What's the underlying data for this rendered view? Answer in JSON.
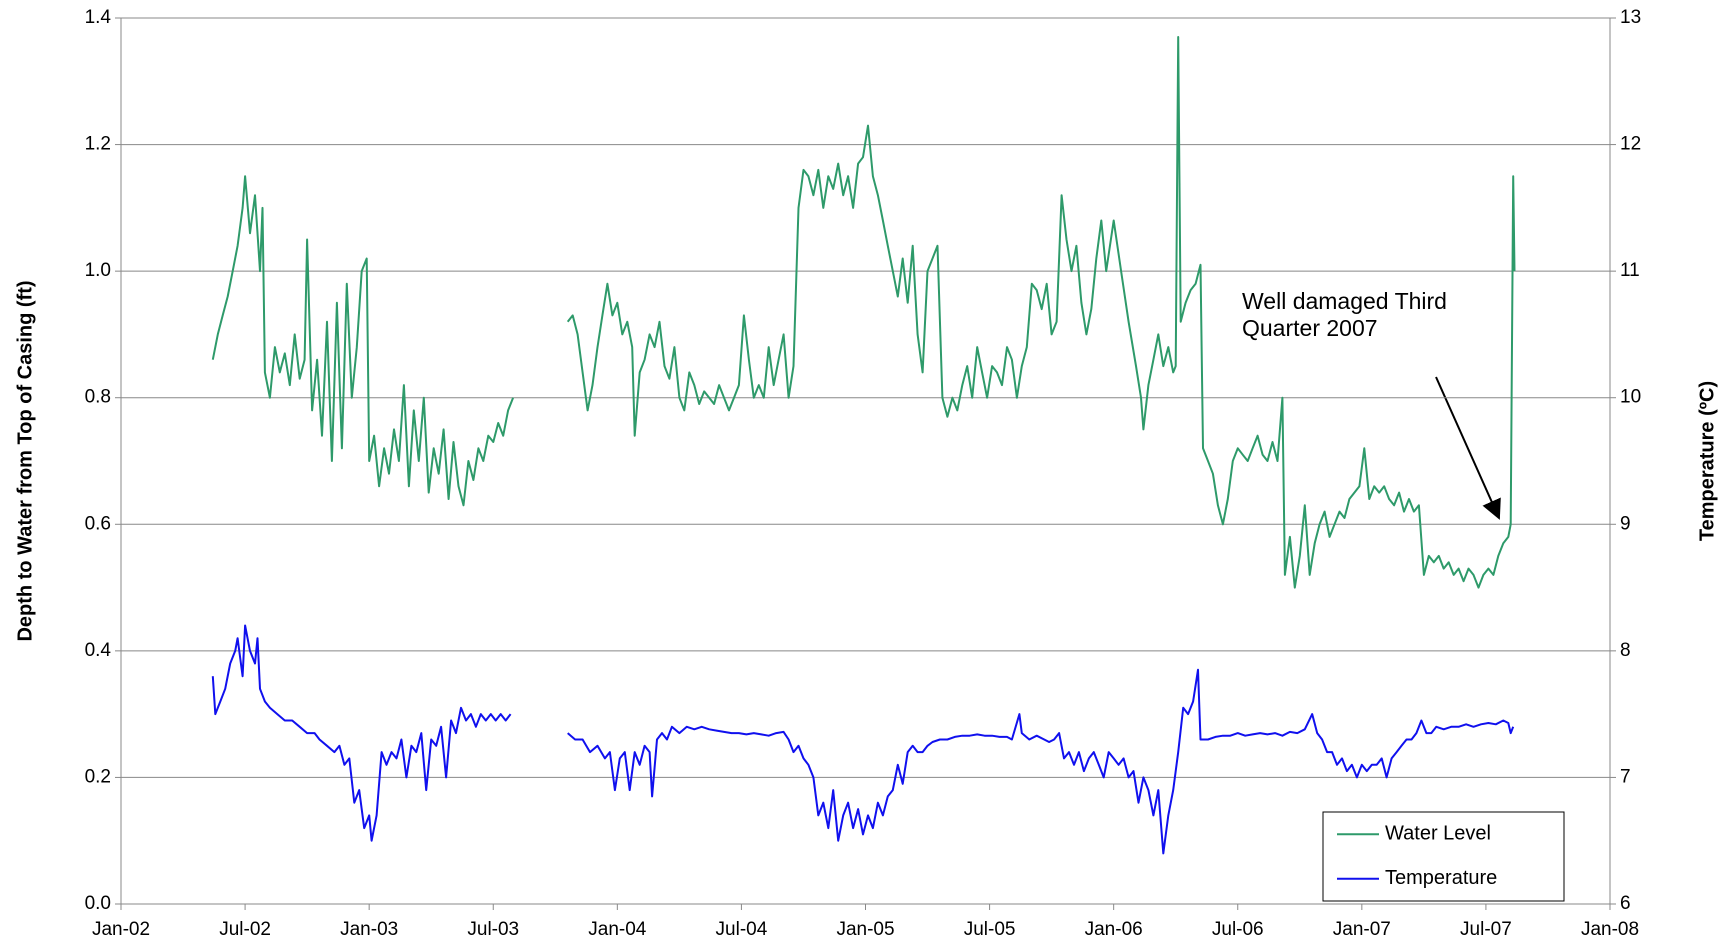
{
  "chart_data": {
    "type": "line",
    "ylabel": "Depth to Water from Top of Casing (ft)",
    "y2label": "Temperature (ºC)",
    "annotation": "Well damaged Third Quarter 2007",
    "xlim": [
      2002.0,
      2008.0
    ],
    "xticks": [
      {
        "value": 2002.0,
        "label": "Jan-02"
      },
      {
        "value": 2002.5,
        "label": "Jul-02"
      },
      {
        "value": 2003.0,
        "label": "Jan-03"
      },
      {
        "value": 2003.5,
        "label": "Jul-03"
      },
      {
        "value": 2004.0,
        "label": "Jan-04"
      },
      {
        "value": 2004.5,
        "label": "Jul-04"
      },
      {
        "value": 2005.0,
        "label": "Jan-05"
      },
      {
        "value": 2005.5,
        "label": "Jul-05"
      },
      {
        "value": 2006.0,
        "label": "Jan-06"
      },
      {
        "value": 2006.5,
        "label": "Jul-06"
      },
      {
        "value": 2007.0,
        "label": "Jan-07"
      },
      {
        "value": 2007.5,
        "label": "Jul-07"
      },
      {
        "value": 2008.0,
        "label": "Jan-08"
      }
    ],
    "ylim": [
      0,
      1.4
    ],
    "yticks": [
      {
        "value": 0,
        "label": "0.0"
      },
      0.2,
      0.4,
      0.6,
      0.8,
      {
        "value": 1,
        "label": "1.0"
      },
      1.2,
      1.4
    ],
    "y2lim": [
      6,
      13
    ],
    "y2ticks": [
      6,
      7,
      8,
      9,
      10,
      11,
      12,
      13
    ],
    "grid": true,
    "legend": "lower right",
    "series": [
      {
        "name": "Water Level",
        "color": "#2e9a6a",
        "axis": "y",
        "x": [
          2002.37,
          2002.39,
          2002.41,
          2002.43,
          2002.45,
          2002.47,
          2002.49,
          2002.5,
          2002.52,
          2002.54,
          2002.56,
          2002.57,
          2002.58,
          2002.6,
          2002.62,
          2002.64,
          2002.66,
          2002.68,
          2002.7,
          2002.72,
          2002.74,
          2002.75,
          2002.77,
          2002.79,
          2002.81,
          2002.83,
          2002.85,
          2002.87,
          2002.89,
          2002.91,
          2002.93,
          2002.95,
          2002.97,
          2002.99,
          2003.0,
          2003.02,
          2003.04,
          2003.06,
          2003.08,
          2003.1,
          2003.12,
          2003.14,
          2003.16,
          2003.18,
          2003.2,
          2003.22,
          2003.24,
          2003.26,
          2003.28,
          2003.3,
          2003.32,
          2003.34,
          2003.36,
          2003.38,
          2003.4,
          2003.42,
          2003.44,
          2003.46,
          2003.48,
          2003.5,
          2003.52,
          2003.54,
          2003.56,
          2003.58,
          2003.69,
          2003.8,
          2003.82,
          2003.84,
          2003.86,
          2003.88,
          2003.9,
          2003.92,
          2003.94,
          2003.96,
          2003.98,
          2004.0,
          2004.02,
          2004.04,
          2004.06,
          2004.07,
          2004.09,
          2004.11,
          2004.13,
          2004.15,
          2004.17,
          2004.19,
          2004.21,
          2004.23,
          2004.25,
          2004.27,
          2004.29,
          2004.31,
          2004.33,
          2004.35,
          2004.37,
          2004.39,
          2004.41,
          2004.43,
          2004.45,
          2004.47,
          2004.49,
          2004.51,
          2004.53,
          2004.55,
          2004.57,
          2004.59,
          2004.61,
          2004.63,
          2004.65,
          2004.67,
          2004.69,
          2004.71,
          2004.73,
          2004.75,
          2004.77,
          2004.79,
          2004.81,
          2004.83,
          2004.85,
          2004.87,
          2004.89,
          2004.91,
          2004.93,
          2004.95,
          2004.97,
          2004.99,
          2005.01,
          2005.03,
          2005.05,
          2005.07,
          2005.09,
          2005.11,
          2005.13,
          2005.15,
          2005.17,
          2005.19,
          2005.21,
          2005.23,
          2005.25,
          2005.27,
          2005.29,
          2005.31,
          2005.33,
          2005.35,
          2005.37,
          2005.39,
          2005.41,
          2005.43,
          2005.45,
          2005.47,
          2005.49,
          2005.51,
          2005.53,
          2005.55,
          2005.57,
          2005.59,
          2005.61,
          2005.63,
          2005.65,
          2005.67,
          2005.69,
          2005.71,
          2005.73,
          2005.75,
          2005.77,
          2005.79,
          2005.81,
          2005.83,
          2005.85,
          2005.87,
          2005.89,
          2005.91,
          2005.93,
          2005.95,
          2005.97,
          2006.0,
          2006.03,
          2006.06,
          2006.09,
          2006.11,
          2006.12,
          2006.14,
          2006.16,
          2006.18,
          2006.2,
          2006.22,
          2006.24,
          2006.25,
          2006.26,
          2006.27,
          2006.29,
          2006.31,
          2006.33,
          2006.35,
          2006.36,
          2006.38,
          2006.4,
          2006.42,
          2006.44,
          2006.46,
          2006.48,
          2006.5,
          2006.52,
          2006.54,
          2006.56,
          2006.58,
          2006.6,
          2006.62,
          2006.64,
          2006.66,
          2006.68,
          2006.69,
          2006.71,
          2006.73,
          2006.75,
          2006.77,
          2006.79,
          2006.81,
          2006.83,
          2006.85,
          2006.87,
          2006.89,
          2006.91,
          2006.93,
          2006.95,
          2006.97,
          2006.99,
          2007.01,
          2007.03,
          2007.05,
          2007.07,
          2007.09,
          2007.11,
          2007.13,
          2007.15,
          2007.17,
          2007.19,
          2007.21,
          2007.23,
          2007.25,
          2007.27,
          2007.29,
          2007.31,
          2007.33,
          2007.35,
          2007.37,
          2007.39,
          2007.41,
          2007.43,
          2007.45,
          2007.47,
          2007.49,
          2007.51,
          2007.53,
          2007.55,
          2007.57,
          2007.59,
          2007.6,
          2007.61,
          2007.615
        ],
        "values": [
          0.86,
          0.9,
          0.93,
          0.96,
          1.0,
          1.04,
          1.1,
          1.15,
          1.06,
          1.12,
          1.0,
          1.1,
          0.84,
          0.8,
          0.88,
          0.84,
          0.87,
          0.82,
          0.9,
          0.83,
          0.86,
          1.05,
          0.78,
          0.86,
          0.74,
          0.92,
          0.7,
          0.95,
          0.72,
          0.98,
          0.8,
          0.88,
          1.0,
          1.02,
          0.7,
          0.74,
          0.66,
          0.72,
          0.68,
          0.75,
          0.7,
          0.82,
          0.66,
          0.78,
          0.7,
          0.8,
          0.65,
          0.72,
          0.68,
          0.75,
          0.64,
          0.73,
          0.66,
          0.63,
          0.7,
          0.67,
          0.72,
          0.7,
          0.74,
          0.73,
          0.76,
          0.74,
          0.78,
          0.8,
          null,
          0.92,
          0.93,
          0.9,
          0.84,
          0.78,
          0.82,
          0.88,
          0.93,
          0.98,
          0.93,
          0.95,
          0.9,
          0.92,
          0.88,
          0.74,
          0.84,
          0.86,
          0.9,
          0.88,
          0.92,
          0.85,
          0.83,
          0.88,
          0.8,
          0.78,
          0.84,
          0.82,
          0.79,
          0.81,
          0.8,
          0.79,
          0.82,
          0.8,
          0.78,
          0.8,
          0.82,
          0.93,
          0.86,
          0.8,
          0.82,
          0.8,
          0.88,
          0.82,
          0.86,
          0.9,
          0.8,
          0.85,
          1.1,
          1.16,
          1.15,
          1.12,
          1.16,
          1.1,
          1.15,
          1.13,
          1.17,
          1.12,
          1.15,
          1.1,
          1.17,
          1.18,
          1.23,
          1.15,
          1.12,
          1.08,
          1.04,
          1.0,
          0.96,
          1.02,
          0.95,
          1.04,
          0.9,
          0.84,
          1.0,
          1.02,
          1.04,
          0.8,
          0.77,
          0.8,
          0.78,
          0.82,
          0.85,
          0.8,
          0.88,
          0.84,
          0.8,
          0.85,
          0.84,
          0.82,
          0.88,
          0.86,
          0.8,
          0.85,
          0.88,
          0.98,
          0.97,
          0.94,
          0.98,
          0.9,
          0.92,
          1.12,
          1.05,
          1.0,
          1.04,
          0.95,
          0.9,
          0.94,
          1.02,
          1.08,
          1.0,
          1.08,
          1.0,
          0.92,
          0.85,
          0.8,
          0.75,
          0.82,
          0.86,
          0.9,
          0.85,
          0.88,
          0.84,
          0.85,
          1.37,
          0.92,
          0.95,
          0.97,
          0.98,
          1.01,
          0.72,
          0.7,
          0.68,
          0.63,
          0.6,
          0.64,
          0.7,
          0.72,
          0.71,
          0.7,
          0.72,
          0.74,
          0.71,
          0.7,
          0.73,
          0.7,
          0.8,
          0.52,
          0.58,
          0.5,
          0.55,
          0.63,
          0.52,
          0.57,
          0.6,
          0.62,
          0.58,
          0.6,
          0.62,
          0.61,
          0.64,
          0.65,
          0.66,
          0.72,
          0.64,
          0.66,
          0.65,
          0.66,
          0.64,
          0.63,
          0.65,
          0.62,
          0.64,
          0.62,
          0.63,
          0.52,
          0.55,
          0.54,
          0.55,
          0.53,
          0.54,
          0.52,
          0.53,
          0.51,
          0.53,
          0.52,
          0.5,
          0.52,
          0.53,
          0.52,
          0.55,
          0.57,
          0.58,
          0.6,
          1.15,
          1.0
        ]
      },
      {
        "name": "Temperature",
        "color": "#1010ee",
        "axis": "y2",
        "x": [
          2002.37,
          2002.38,
          2002.4,
          2002.42,
          2002.44,
          2002.46,
          2002.47,
          2002.49,
          2002.5,
          2002.52,
          2002.54,
          2002.55,
          2002.56,
          2002.58,
          2002.6,
          2002.63,
          2002.66,
          2002.69,
          2002.72,
          2002.75,
          2002.78,
          2002.8,
          2002.83,
          2002.86,
          2002.88,
          2002.9,
          2002.92,
          2002.94,
          2002.96,
          2002.98,
          2003.0,
          2003.01,
          2003.03,
          2003.05,
          2003.07,
          2003.09,
          2003.11,
          2003.13,
          2003.15,
          2003.17,
          2003.19,
          2003.21,
          2003.23,
          2003.25,
          2003.27,
          2003.29,
          2003.31,
          2003.33,
          2003.35,
          2003.37,
          2003.39,
          2003.41,
          2003.43,
          2003.45,
          2003.47,
          2003.49,
          2003.51,
          2003.53,
          2003.55,
          2003.57,
          2003.69,
          2003.8,
          2003.83,
          2003.86,
          2003.89,
          2003.92,
          2003.95,
          2003.97,
          2003.99,
          2004.01,
          2004.03,
          2004.05,
          2004.07,
          2004.09,
          2004.11,
          2004.13,
          2004.14,
          2004.16,
          2004.18,
          2004.2,
          2004.22,
          2004.25,
          2004.28,
          2004.31,
          2004.34,
          2004.37,
          2004.4,
          2004.43,
          2004.46,
          2004.49,
          2004.52,
          2004.55,
          2004.58,
          2004.61,
          2004.64,
          2004.67,
          2004.69,
          2004.71,
          2004.73,
          2004.75,
          2004.77,
          2004.79,
          2004.81,
          2004.83,
          2004.85,
          2004.87,
          2004.89,
          2004.91,
          2004.93,
          2004.95,
          2004.97,
          2004.99,
          2005.01,
          2005.03,
          2005.05,
          2005.07,
          2005.09,
          2005.11,
          2005.13,
          2005.15,
          2005.17,
          2005.19,
          2005.21,
          2005.23,
          2005.25,
          2005.27,
          2005.3,
          2005.33,
          2005.36,
          2005.39,
          2005.42,
          2005.45,
          2005.48,
          2005.51,
          2005.54,
          2005.57,
          2005.59,
          2005.62,
          2005.63,
          2005.66,
          2005.69,
          2005.72,
          2005.74,
          2005.76,
          2005.78,
          2005.8,
          2005.82,
          2005.84,
          2005.86,
          2005.88,
          2005.9,
          2005.92,
          2005.94,
          2005.96,
          2005.98,
          2006.0,
          2006.02,
          2006.04,
          2006.06,
          2006.08,
          2006.1,
          2006.12,
          2006.14,
          2006.16,
          2006.18,
          2006.2,
          2006.22,
          2006.24,
          2006.26,
          2006.28,
          2006.3,
          2006.32,
          2006.34,
          2006.35,
          2006.38,
          2006.41,
          2006.44,
          2006.47,
          2006.5,
          2006.53,
          2006.56,
          2006.59,
          2006.62,
          2006.65,
          2006.68,
          2006.71,
          2006.74,
          2006.77,
          2006.8,
          2006.82,
          2006.84,
          2006.86,
          2006.88,
          2006.9,
          2006.92,
          2006.94,
          2006.96,
          2006.98,
          2007.0,
          2007.02,
          2007.04,
          2007.06,
          2007.08,
          2007.1,
          2007.12,
          2007.14,
          2007.16,
          2007.18,
          2007.2,
          2007.22,
          2007.24,
          2007.26,
          2007.28,
          2007.3,
          2007.33,
          2007.36,
          2007.39,
          2007.42,
          2007.45,
          2007.48,
          2007.51,
          2007.54,
          2007.57,
          2007.59,
          2007.6,
          2007.61
        ],
        "values": [
          7.8,
          7.5,
          7.6,
          7.7,
          7.9,
          8.0,
          8.1,
          7.8,
          8.2,
          8.0,
          7.9,
          8.1,
          7.7,
          7.6,
          7.55,
          7.5,
          7.45,
          7.45,
          7.4,
          7.35,
          7.35,
          7.3,
          7.25,
          7.2,
          7.25,
          7.1,
          7.15,
          6.8,
          6.9,
          6.6,
          6.7,
          6.5,
          6.7,
          7.2,
          7.1,
          7.2,
          7.15,
          7.3,
          7.0,
          7.25,
          7.2,
          7.35,
          6.9,
          7.3,
          7.25,
          7.4,
          7.0,
          7.45,
          7.35,
          7.55,
          7.45,
          7.5,
          7.4,
          7.5,
          7.45,
          7.5,
          7.45,
          7.5,
          7.45,
          7.5,
          null,
          7.35,
          7.3,
          7.3,
          7.2,
          7.25,
          7.15,
          7.2,
          6.9,
          7.15,
          7.2,
          6.9,
          7.2,
          7.1,
          7.25,
          7.2,
          6.85,
          7.3,
          7.35,
          7.3,
          7.4,
          7.35,
          7.4,
          7.38,
          7.4,
          7.38,
          7.37,
          7.36,
          7.35,
          7.35,
          7.34,
          7.35,
          7.34,
          7.33,
          7.35,
          7.36,
          7.3,
          7.2,
          7.25,
          7.15,
          7.1,
          7.0,
          6.7,
          6.8,
          6.6,
          6.9,
          6.5,
          6.7,
          6.8,
          6.6,
          6.75,
          6.55,
          6.7,
          6.6,
          6.8,
          6.7,
          6.85,
          6.9,
          7.1,
          6.95,
          7.2,
          7.25,
          7.2,
          7.2,
          7.25,
          7.28,
          7.3,
          7.3,
          7.32,
          7.33,
          7.33,
          7.34,
          7.33,
          7.33,
          7.32,
          7.32,
          7.3,
          7.5,
          7.35,
          7.3,
          7.33,
          7.3,
          7.28,
          7.3,
          7.35,
          7.15,
          7.2,
          7.1,
          7.2,
          7.05,
          7.15,
          7.2,
          7.1,
          7.0,
          7.2,
          7.15,
          7.1,
          7.15,
          7.0,
          7.05,
          6.8,
          7.0,
          6.9,
          6.7,
          6.9,
          6.4,
          6.7,
          6.9,
          7.2,
          7.55,
          7.5,
          7.6,
          7.85,
          7.3,
          7.3,
          7.32,
          7.33,
          7.33,
          7.35,
          7.33,
          7.34,
          7.35,
          7.34,
          7.35,
          7.33,
          7.36,
          7.35,
          7.38,
          7.5,
          7.35,
          7.3,
          7.2,
          7.2,
          7.1,
          7.15,
          7.05,
          7.1,
          7.0,
          7.1,
          7.05,
          7.1,
          7.1,
          7.15,
          7.0,
          7.15,
          7.2,
          7.25,
          7.3,
          7.3,
          7.35,
          7.45,
          7.35,
          7.35,
          7.4,
          7.38,
          7.4,
          7.4,
          7.42,
          7.4,
          7.42,
          7.43,
          7.42,
          7.45,
          7.43,
          7.35,
          7.4
        ]
      }
    ]
  }
}
